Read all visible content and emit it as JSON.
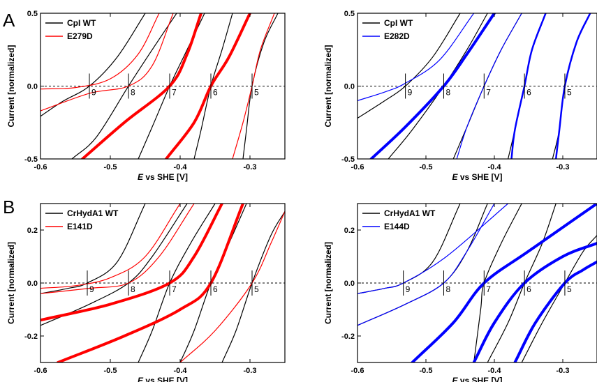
{
  "panel_letters": [
    "A",
    "B"
  ],
  "colors": {
    "wt": "#000000",
    "red": "#ff0000",
    "blue": "#0000ff"
  },
  "chart_data": [
    {
      "type": "line",
      "xlabel_italic": "E",
      "xlabel": " vs SHE [V]",
      "ylabel": "Current [normalized]",
      "xlim": [
        -0.6,
        -0.25
      ],
      "ylim": [
        -0.5,
        0.5
      ],
      "xticks": [
        "-0.6",
        "-0.5",
        "-0.4",
        "-0.3"
      ],
      "yticks": [
        "-0.5",
        "0.0",
        "0.5"
      ],
      "ph_markers": [
        {
          "x": -0.53,
          "label": "9"
        },
        {
          "x": -0.474,
          "label": "8"
        },
        {
          "x": -0.415,
          "label": "7"
        },
        {
          "x": -0.356,
          "label": "6"
        },
        {
          "x": -0.297,
          "label": "5"
        }
      ],
      "legend": [
        "CpI WT",
        "E279D"
      ],
      "series": [
        {
          "name": "CpI WT",
          "color": "#000000",
          "width": 1.2,
          "x": [
            -0.61,
            -0.57,
            -0.53,
            -0.49,
            -0.45
          ],
          "y": [
            -0.24,
            -0.11,
            0.0,
            0.2,
            0.5
          ]
        },
        {
          "name": "CpI WT",
          "color": "#000000",
          "width": 1.2,
          "x": [
            -0.555,
            -0.52,
            -0.474,
            -0.44,
            -0.405
          ],
          "y": [
            -0.5,
            -0.35,
            0.0,
            0.25,
            0.5
          ]
        },
        {
          "name": "CpI WT",
          "color": "#000000",
          "width": 1.2,
          "x": [
            -0.46,
            -0.44,
            -0.415,
            -0.39,
            -0.365
          ],
          "y": [
            -0.5,
            -0.28,
            0.0,
            0.25,
            0.5
          ]
        },
        {
          "name": "CpI WT",
          "color": "#000000",
          "width": 1.2,
          "x": [
            -0.38,
            -0.37,
            -0.356,
            -0.34,
            -0.325
          ],
          "y": [
            -0.5,
            -0.3,
            0.0,
            0.25,
            0.5
          ]
        },
        {
          "name": "CpI WT",
          "color": "#000000",
          "width": 1.2,
          "x": [
            -0.31,
            -0.305,
            -0.297,
            -0.28,
            -0.26
          ],
          "y": [
            -0.5,
            -0.3,
            0.0,
            0.3,
            0.5
          ]
        },
        {
          "name": "E279D",
          "color": "#ff0000",
          "width": 1.2,
          "x": [
            -0.6,
            -0.55,
            -0.5,
            -0.46,
            -0.43
          ],
          "y": [
            -0.02,
            -0.01,
            0.05,
            0.22,
            0.5
          ]
        },
        {
          "name": "E279D",
          "color": "#ff0000",
          "width": 1.2,
          "x": [
            -0.6,
            -0.53,
            -0.474,
            -0.44,
            -0.41
          ],
          "y": [
            -0.17,
            -0.05,
            0.0,
            0.14,
            0.5
          ]
        },
        {
          "name": "E279D",
          "color": "#ff0000",
          "width": 4,
          "x": [
            -0.54,
            -0.48,
            -0.415,
            -0.39,
            -0.37
          ],
          "y": [
            -0.5,
            -0.25,
            0.0,
            0.22,
            0.5
          ]
        },
        {
          "name": "E279D",
          "color": "#ff0000",
          "width": 4,
          "x": [
            -0.42,
            -0.38,
            -0.356,
            -0.33,
            -0.3
          ],
          "y": [
            -0.5,
            -0.25,
            0.0,
            0.2,
            0.5
          ]
        },
        {
          "name": "E279D",
          "color": "#ff0000",
          "width": 1.2,
          "x": [
            -0.325,
            -0.31,
            -0.297,
            -0.285,
            -0.265
          ],
          "y": [
            -0.5,
            -0.25,
            0.0,
            0.25,
            0.5
          ]
        }
      ]
    },
    {
      "type": "line",
      "xlabel_italic": "E",
      "xlabel": " vs SHE [V]",
      "ylabel": "Current [normalized]",
      "xlim": [
        -0.6,
        -0.25
      ],
      "ylim": [
        -0.5,
        0.5
      ],
      "xticks": [
        "-0.6",
        "-0.5",
        "-0.4",
        "-0.3"
      ],
      "yticks": [
        "-0.5",
        "0.0",
        "0.5"
      ],
      "ph_markers": [
        {
          "x": -0.53,
          "label": "9"
        },
        {
          "x": -0.474,
          "label": "8"
        },
        {
          "x": -0.415,
          "label": "7"
        },
        {
          "x": -0.356,
          "label": "6"
        },
        {
          "x": -0.297,
          "label": "5"
        }
      ],
      "legend": [
        "CpI WT",
        "E282D"
      ],
      "series": [
        {
          "name": "CpI WT",
          "color": "#000000",
          "width": 1.2,
          "x": [
            -0.6,
            -0.56,
            -0.53,
            -0.49,
            -0.45
          ],
          "y": [
            -0.22,
            -0.1,
            0.0,
            0.2,
            0.5
          ]
        },
        {
          "name": "CpI WT",
          "color": "#000000",
          "width": 1.2,
          "x": [
            -0.555,
            -0.52,
            -0.474,
            -0.44,
            -0.41
          ],
          "y": [
            -0.5,
            -0.3,
            0.0,
            0.25,
            0.5
          ]
        },
        {
          "name": "CpI WT",
          "color": "#000000",
          "width": 1.2,
          "x": [
            -0.46,
            -0.44,
            -0.415,
            -0.39,
            -0.36
          ],
          "y": [
            -0.5,
            -0.28,
            0.0,
            0.25,
            0.5
          ]
        },
        {
          "name": "CpI WT",
          "color": "#000000",
          "width": 1.2,
          "x": [
            -0.38,
            -0.37,
            -0.356,
            -0.345,
            -0.325
          ],
          "y": [
            -0.5,
            -0.3,
            0.0,
            0.25,
            0.5
          ]
        },
        {
          "name": "CpI WT",
          "color": "#000000",
          "width": 1.2,
          "x": [
            -0.315,
            -0.305,
            -0.297,
            -0.28,
            -0.26
          ],
          "y": [
            -0.5,
            -0.3,
            0.0,
            0.3,
            0.5
          ]
        },
        {
          "name": "E282D",
          "color": "#0000ff",
          "width": 1.2,
          "x": [
            -0.6,
            -0.56,
            -0.53,
            -0.48,
            -0.43
          ],
          "y": [
            -0.1,
            -0.04,
            0.02,
            0.18,
            0.5
          ]
        },
        {
          "name": "E282D",
          "color": "#0000ff",
          "width": 4,
          "x": [
            -0.58,
            -0.53,
            -0.474,
            -0.44,
            -0.4
          ],
          "y": [
            -0.5,
            -0.28,
            0.0,
            0.22,
            0.5
          ]
        },
        {
          "name": "E282D",
          "color": "#0000ff",
          "width": 1.2,
          "x": [
            -0.455,
            -0.44,
            -0.415,
            -0.39,
            -0.36
          ],
          "y": [
            -0.5,
            -0.28,
            0.0,
            0.25,
            0.5
          ]
        },
        {
          "name": "E282D",
          "color": "#0000ff",
          "width": 2.5,
          "x": [
            -0.375,
            -0.37,
            -0.356,
            -0.345,
            -0.325
          ],
          "y": [
            -0.5,
            -0.3,
            0.0,
            0.25,
            0.5
          ]
        },
        {
          "name": "E282D",
          "color": "#0000ff",
          "width": 2.5,
          "x": [
            -0.31,
            -0.305,
            -0.297,
            -0.28,
            -0.26
          ],
          "y": [
            -0.5,
            -0.3,
            0.0,
            0.3,
            0.5
          ]
        }
      ]
    },
    {
      "type": "line",
      "xlabel_italic": "E",
      "xlabel": " vs SHE [V]",
      "ylabel": "Current [normalized]",
      "xlim": [
        -0.6,
        -0.25
      ],
      "ylim": [
        -0.3,
        0.3
      ],
      "xticks": [
        "-0.6",
        "-0.5",
        "-0.4",
        "-0.3"
      ],
      "yticks": [
        "-0.2",
        "0.0",
        "0.2"
      ],
      "ph_markers": [
        {
          "x": -0.533,
          "label": "9"
        },
        {
          "x": -0.474,
          "label": "8"
        },
        {
          "x": -0.415,
          "label": "7"
        },
        {
          "x": -0.356,
          "label": "6"
        },
        {
          "x": -0.297,
          "label": "5"
        }
      ],
      "legend": [
        "CrHydA1 WT",
        "E141D"
      ],
      "series": [
        {
          "name": "CrHydA1 WT",
          "color": "#000000",
          "width": 1.2,
          "x": [
            -0.6,
            -0.56,
            -0.533,
            -0.49,
            -0.45
          ],
          "y": [
            -0.04,
            -0.02,
            0.0,
            0.08,
            0.3
          ]
        },
        {
          "name": "CrHydA1 WT",
          "color": "#000000",
          "width": 1.2,
          "x": [
            -0.6,
            -0.53,
            -0.474,
            -0.44,
            -0.39
          ],
          "y": [
            -0.16,
            -0.08,
            0.0,
            0.1,
            0.3
          ]
        },
        {
          "name": "CrHydA1 WT",
          "color": "#000000",
          "width": 1.2,
          "x": [
            -0.46,
            -0.44,
            -0.415,
            -0.385,
            -0.35
          ],
          "y": [
            -0.3,
            -0.18,
            0.0,
            0.15,
            0.3
          ]
        },
        {
          "name": "CrHydA1 WT",
          "color": "#000000",
          "width": 1.2,
          "x": [
            -0.4,
            -0.38,
            -0.356,
            -0.33,
            -0.305
          ],
          "y": [
            -0.3,
            -0.18,
            0.0,
            0.15,
            0.3
          ]
        },
        {
          "name": "CrHydA1 WT",
          "color": "#000000",
          "width": 1.2,
          "x": [
            -0.34,
            -0.32,
            -0.297,
            -0.27,
            -0.25
          ],
          "y": [
            -0.3,
            -0.18,
            0.0,
            0.18,
            0.27
          ]
        },
        {
          "name": "E141D",
          "color": "#ff0000",
          "width": 1.2,
          "x": [
            -0.6,
            -0.55,
            -0.5,
            -0.45,
            -0.4
          ],
          "y": [
            -0.02,
            -0.01,
            0.02,
            0.1,
            0.3
          ]
        },
        {
          "name": "E141D",
          "color": "#ff0000",
          "width": 1.2,
          "x": [
            -0.6,
            -0.53,
            -0.474,
            -0.43,
            -0.38
          ],
          "y": [
            -0.04,
            -0.02,
            0.0,
            0.1,
            0.3
          ]
        },
        {
          "name": "E141D",
          "color": "#ff0000",
          "width": 4,
          "x": [
            -0.6,
            -0.5,
            -0.415,
            -0.38,
            -0.34
          ],
          "y": [
            -0.14,
            -0.08,
            0.0,
            0.1,
            0.3
          ]
        },
        {
          "name": "E141D",
          "color": "#ff0000",
          "width": 4,
          "x": [
            -0.575,
            -0.48,
            -0.4,
            -0.356,
            -0.31
          ],
          "y": [
            -0.3,
            -0.2,
            -0.1,
            0.0,
            0.3
          ]
        },
        {
          "name": "E141D",
          "color": "#ff0000",
          "width": 1.2,
          "x": [
            -0.4,
            -0.35,
            -0.297,
            -0.27,
            -0.25
          ],
          "y": [
            -0.3,
            -0.18,
            0.0,
            0.15,
            0.27
          ]
        }
      ]
    },
    {
      "type": "line",
      "xlabel_italic": "E",
      "xlabel": " vs SHE [V]",
      "ylabel": "Current [normalized]",
      "xlim": [
        -0.6,
        -0.25
      ],
      "ylim": [
        -0.3,
        0.3
      ],
      "xticks": [
        "-0.6",
        "-0.5",
        "-0.4",
        "-0.3"
      ],
      "yticks": [
        "-0.2",
        "0.0",
        "0.2"
      ],
      "ph_markers": [
        {
          "x": -0.533,
          "label": "9"
        },
        {
          "x": -0.474,
          "label": "8"
        },
        {
          "x": -0.415,
          "label": "7"
        },
        {
          "x": -0.356,
          "label": "6"
        },
        {
          "x": -0.297,
          "label": "5"
        }
      ],
      "legend": [
        "CrHydA1 WT",
        "E144D"
      ],
      "series": [
        {
          "name": "CrHydA1 WT",
          "color": "#000000",
          "width": 1.2,
          "x": [
            -0.6,
            -0.56,
            -0.533,
            -0.49,
            -0.45
          ],
          "y": [
            -0.04,
            -0.02,
            0.0,
            0.08,
            0.3
          ]
        },
        {
          "name": "CrHydA1 WT",
          "color": "#000000",
          "width": 1.2,
          "x": [
            -0.6,
            -0.53,
            -0.474,
            -0.44,
            -0.41
          ],
          "y": [
            -0.16,
            -0.08,
            0.0,
            0.12,
            0.3
          ]
        },
        {
          "name": "CrHydA1 WT",
          "color": "#000000",
          "width": 1.2,
          "x": [
            -0.43,
            -0.42,
            -0.415,
            -0.39,
            -0.36
          ],
          "y": [
            -0.3,
            -0.1,
            0.0,
            0.15,
            0.3
          ]
        },
        {
          "name": "CrHydA1 WT",
          "color": "#000000",
          "width": 1.2,
          "x": [
            -0.41,
            -0.38,
            -0.356,
            -0.33,
            -0.31
          ],
          "y": [
            -0.3,
            -0.15,
            0.0,
            0.15,
            0.3
          ]
        },
        {
          "name": "CrHydA1 WT",
          "color": "#000000",
          "width": 1.2,
          "x": [
            -0.36,
            -0.33,
            -0.297,
            -0.27,
            -0.25
          ],
          "y": [
            -0.3,
            -0.15,
            0.0,
            0.12,
            0.18
          ]
        },
        {
          "name": "E144D",
          "color": "#0000ff",
          "width": 1.2,
          "x": [
            -0.6,
            -0.56,
            -0.533,
            -0.47,
            -0.38
          ],
          "y": [
            -0.04,
            -0.02,
            0.0,
            0.1,
            0.3
          ]
        },
        {
          "name": "E144D",
          "color": "#0000ff",
          "width": 1.2,
          "x": [
            -0.6,
            -0.53,
            -0.474,
            -0.44,
            -0.4
          ],
          "y": [
            -0.16,
            -0.08,
            0.0,
            0.12,
            0.3
          ]
        },
        {
          "name": "E144D",
          "color": "#0000ff",
          "width": 4,
          "x": [
            -0.52,
            -0.46,
            -0.415,
            -0.35,
            -0.25
          ],
          "y": [
            -0.3,
            -0.15,
            0.0,
            0.12,
            0.3
          ]
        },
        {
          "name": "E144D",
          "color": "#0000ff",
          "width": 4,
          "x": [
            -0.43,
            -0.4,
            -0.356,
            -0.3,
            -0.25
          ],
          "y": [
            -0.3,
            -0.15,
            0.0,
            0.1,
            0.15
          ]
        },
        {
          "name": "E144D",
          "color": "#0000ff",
          "width": 4,
          "x": [
            -0.37,
            -0.34,
            -0.297,
            -0.27,
            -0.25
          ],
          "y": [
            -0.3,
            -0.15,
            0.0,
            0.05,
            0.08
          ]
        }
      ]
    }
  ]
}
